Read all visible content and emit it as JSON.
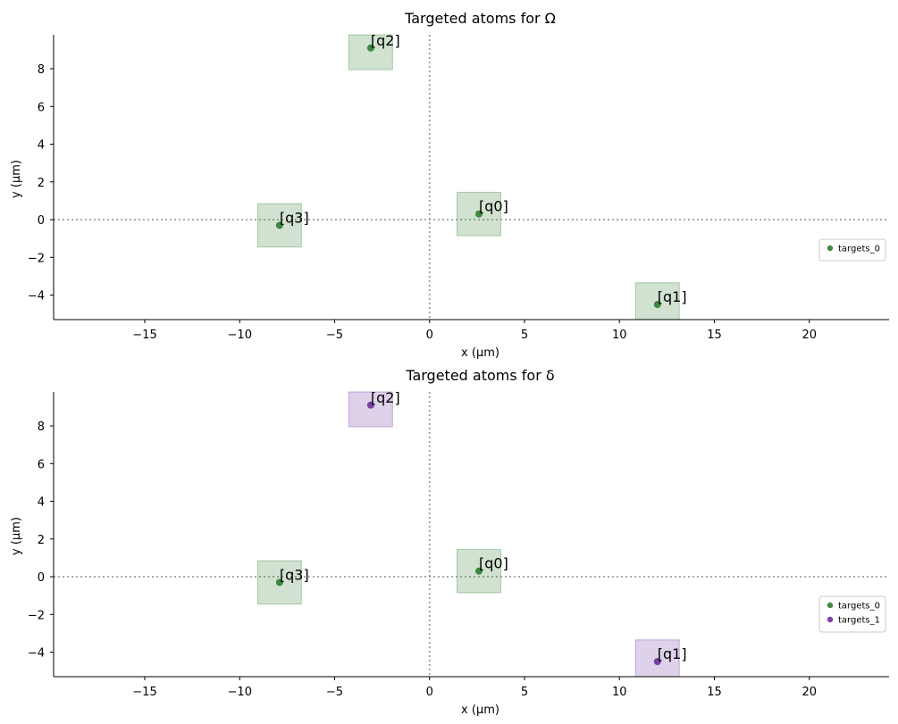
{
  "chart_data": [
    {
      "type": "scatter",
      "title": "Targeted atoms for Ω",
      "xlabel": "x (µm)",
      "ylabel": "y (µm)",
      "xlim": [
        -19.8,
        24.2
      ],
      "ylim": [
        -5.3,
        9.8
      ],
      "xticks": [
        -15,
        -10,
        -5,
        0,
        5,
        10,
        15,
        20
      ],
      "yticks": [
        -4,
        -2,
        0,
        2,
        4,
        6,
        8
      ],
      "legend_position": "right",
      "guide_lines": {
        "x": 0,
        "y": 0,
        "style": "dotted"
      },
      "atoms": [
        {
          "label": "[q0]",
          "x": 2.6,
          "y": 0.3,
          "target": "targets_0"
        },
        {
          "label": "[q1]",
          "x": 12.0,
          "y": -4.5,
          "target": "targets_0"
        },
        {
          "label": "[q2]",
          "x": -3.1,
          "y": 9.1,
          "target": "targets_0"
        },
        {
          "label": "[q3]",
          "x": -7.9,
          "y": -0.3,
          "target": "targets_0"
        }
      ],
      "series": [
        {
          "name": "targets_0",
          "color": "#2e7d2e"
        }
      ]
    },
    {
      "type": "scatter",
      "title": "Targeted atoms for δ",
      "xlabel": "x (µm)",
      "ylabel": "y (µm)",
      "xlim": [
        -19.8,
        24.2
      ],
      "ylim": [
        -5.3,
        9.8
      ],
      "xticks": [
        -15,
        -10,
        -5,
        0,
        5,
        10,
        15,
        20
      ],
      "yticks": [
        -4,
        -2,
        0,
        2,
        4,
        6,
        8
      ],
      "legend_position": "right",
      "guide_lines": {
        "x": 0,
        "y": 0,
        "style": "dotted"
      },
      "atoms": [
        {
          "label": "[q0]",
          "x": 2.6,
          "y": 0.3,
          "target": "targets_0"
        },
        {
          "label": "[q1]",
          "x": 12.0,
          "y": -4.5,
          "target": "targets_1"
        },
        {
          "label": "[q2]",
          "x": -3.1,
          "y": 9.1,
          "target": "targets_1"
        },
        {
          "label": "[q3]",
          "x": -7.9,
          "y": -0.3,
          "target": "targets_0"
        }
      ],
      "series": [
        {
          "name": "targets_0",
          "color": "#2e7d2e"
        },
        {
          "name": "targets_1",
          "color": "#6a2fa0"
        }
      ]
    }
  ],
  "style": {
    "box_half_size_um": 1.15,
    "box_fill_opacity": 0.22,
    "box_stroke_opacity": 0.35,
    "guide_color": "#9e9e9e",
    "axis_color": "#000000"
  }
}
